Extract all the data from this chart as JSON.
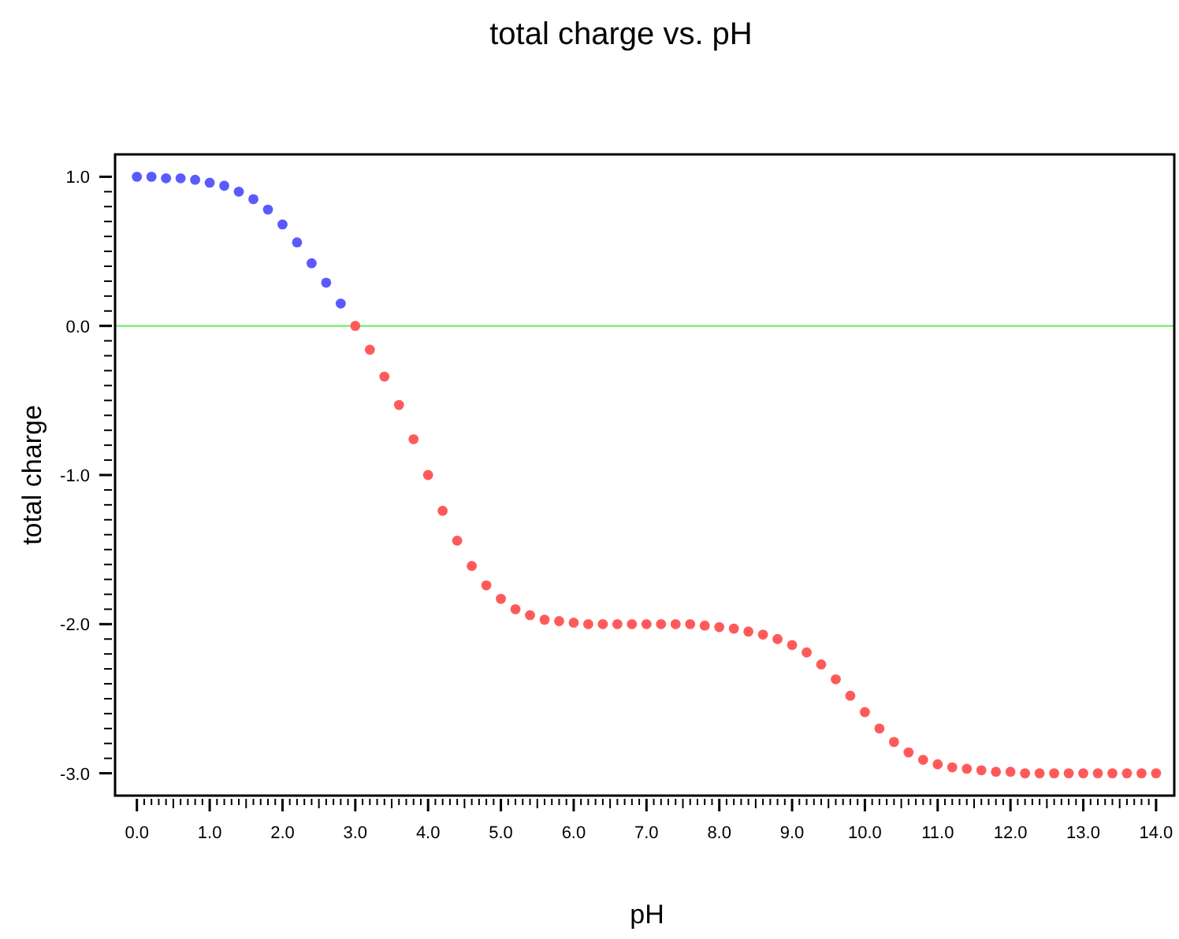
{
  "chart_data": {
    "type": "scatter",
    "title": "total charge vs. pH",
    "xlabel": "pH",
    "ylabel": "total charge",
    "marker": "circle",
    "grid": false,
    "xlim": [
      -0.3,
      14.25
    ],
    "ylim": [
      -3.15,
      1.15
    ],
    "xticks": [
      {
        "value": 0,
        "label": "0.0"
      },
      {
        "value": 1,
        "label": "1.0"
      },
      {
        "value": 2,
        "label": "2.0"
      },
      {
        "value": 3,
        "label": "3.0"
      },
      {
        "value": 4,
        "label": "4.0"
      },
      {
        "value": 5,
        "label": "5.0"
      },
      {
        "value": 6,
        "label": "6.0"
      },
      {
        "value": 7,
        "label": "7.0"
      },
      {
        "value": 8,
        "label": "8.0"
      },
      {
        "value": 9,
        "label": "9.0"
      },
      {
        "value": 10,
        "label": "10.0"
      },
      {
        "value": 11,
        "label": "11.0"
      },
      {
        "value": 12,
        "label": "12.0"
      },
      {
        "value": 13,
        "label": "13.0"
      },
      {
        "value": 14,
        "label": "14.0"
      },
      {
        "value": 0.1,
        "label": null
      },
      {
        "value": 0.2,
        "label": null
      },
      {
        "value": 0.3,
        "label": null
      },
      {
        "value": 0.4,
        "label": null
      },
      {
        "value": 0.5,
        "label": null
      },
      {
        "value": 0.6,
        "label": null
      },
      {
        "value": 0.7,
        "label": null
      },
      {
        "value": 0.8,
        "label": null
      },
      {
        "value": 0.9,
        "label": null
      },
      {
        "value": 1.1,
        "label": null
      },
      {
        "value": 1.2,
        "label": null
      },
      {
        "value": 1.3,
        "label": null
      },
      {
        "value": 1.4,
        "label": null
      },
      {
        "value": 1.5,
        "label": null
      },
      {
        "value": 1.6,
        "label": null
      },
      {
        "value": 1.7,
        "label": null
      },
      {
        "value": 1.8,
        "label": null
      },
      {
        "value": 1.9,
        "label": null
      },
      {
        "value": 2.1,
        "label": null
      },
      {
        "value": 2.2,
        "label": null
      },
      {
        "value": 2.3,
        "label": null
      },
      {
        "value": 2.4,
        "label": null
      },
      {
        "value": 2.5,
        "label": null
      },
      {
        "value": 2.6,
        "label": null
      },
      {
        "value": 2.7,
        "label": null
      },
      {
        "value": 2.8,
        "label": null
      },
      {
        "value": 2.9,
        "label": null
      },
      {
        "value": 3.1,
        "label": null
      },
      {
        "value": 3.2,
        "label": null
      },
      {
        "value": 3.3,
        "label": null
      },
      {
        "value": 3.4,
        "label": null
      },
      {
        "value": 3.5,
        "label": null
      },
      {
        "value": 3.6,
        "label": null
      },
      {
        "value": 3.7,
        "label": null
      },
      {
        "value": 3.8,
        "label": null
      },
      {
        "value": 3.9,
        "label": null
      },
      {
        "value": 4.1,
        "label": null
      },
      {
        "value": 4.2,
        "label": null
      },
      {
        "value": 4.3,
        "label": null
      },
      {
        "value": 4.4,
        "label": null
      },
      {
        "value": 4.5,
        "label": null
      },
      {
        "value": 4.6,
        "label": null
      },
      {
        "value": 4.7,
        "label": null
      },
      {
        "value": 4.8,
        "label": null
      },
      {
        "value": 4.9,
        "label": null
      },
      {
        "value": 5.1,
        "label": null
      },
      {
        "value": 5.2,
        "label": null
      },
      {
        "value": 5.3,
        "label": null
      },
      {
        "value": 5.4,
        "label": null
      },
      {
        "value": 5.5,
        "label": null
      },
      {
        "value": 5.6,
        "label": null
      },
      {
        "value": 5.7,
        "label": null
      },
      {
        "value": 5.8,
        "label": null
      },
      {
        "value": 5.9,
        "label": null
      },
      {
        "value": 6.1,
        "label": null
      },
      {
        "value": 6.2,
        "label": null
      },
      {
        "value": 6.3,
        "label": null
      },
      {
        "value": 6.4,
        "label": null
      },
      {
        "value": 6.5,
        "label": null
      },
      {
        "value": 6.6,
        "label": null
      },
      {
        "value": 6.7,
        "label": null
      },
      {
        "value": 6.8,
        "label": null
      },
      {
        "value": 6.9,
        "label": null
      },
      {
        "value": 7.1,
        "label": null
      },
      {
        "value": 7.2,
        "label": null
      },
      {
        "value": 7.3,
        "label": null
      },
      {
        "value": 7.4,
        "label": null
      },
      {
        "value": 7.5,
        "label": null
      },
      {
        "value": 7.6,
        "label": null
      },
      {
        "value": 7.7,
        "label": null
      },
      {
        "value": 7.8,
        "label": null
      },
      {
        "value": 7.9,
        "label": null
      },
      {
        "value": 8.1,
        "label": null
      },
      {
        "value": 8.2,
        "label": null
      },
      {
        "value": 8.3,
        "label": null
      },
      {
        "value": 8.4,
        "label": null
      },
      {
        "value": 8.5,
        "label": null
      },
      {
        "value": 8.6,
        "label": null
      },
      {
        "value": 8.7,
        "label": null
      },
      {
        "value": 8.8,
        "label": null
      },
      {
        "value": 8.9,
        "label": null
      },
      {
        "value": 9.1,
        "label": null
      },
      {
        "value": 9.2,
        "label": null
      },
      {
        "value": 9.3,
        "label": null
      },
      {
        "value": 9.4,
        "label": null
      },
      {
        "value": 9.5,
        "label": null
      },
      {
        "value": 9.6,
        "label": null
      },
      {
        "value": 9.7,
        "label": null
      },
      {
        "value": 9.8,
        "label": null
      },
      {
        "value": 9.9,
        "label": null
      },
      {
        "value": 10.1,
        "label": null
      },
      {
        "value": 10.2,
        "label": null
      },
      {
        "value": 10.3,
        "label": null
      },
      {
        "value": 10.4,
        "label": null
      },
      {
        "value": 10.5,
        "label": null
      },
      {
        "value": 10.6,
        "label": null
      },
      {
        "value": 10.7,
        "label": null
      },
      {
        "value": 10.8,
        "label": null
      },
      {
        "value": 10.9,
        "label": null
      },
      {
        "value": 11.1,
        "label": null
      },
      {
        "value": 11.2,
        "label": null
      },
      {
        "value": 11.3,
        "label": null
      },
      {
        "value": 11.4,
        "label": null
      },
      {
        "value": 11.5,
        "label": null
      },
      {
        "value": 11.6,
        "label": null
      },
      {
        "value": 11.7,
        "label": null
      },
      {
        "value": 11.8,
        "label": null
      },
      {
        "value": 11.9,
        "label": null
      },
      {
        "value": 12.1,
        "label": null
      },
      {
        "value": 12.2,
        "label": null
      },
      {
        "value": 12.3,
        "label": null
      },
      {
        "value": 12.4,
        "label": null
      },
      {
        "value": 12.5,
        "label": null
      },
      {
        "value": 12.6,
        "label": null
      },
      {
        "value": 12.7,
        "label": null
      },
      {
        "value": 12.8,
        "label": null
      },
      {
        "value": 12.9,
        "label": null
      },
      {
        "value": 13.1,
        "label": null
      },
      {
        "value": 13.2,
        "label": null
      },
      {
        "value": 13.3,
        "label": null
      },
      {
        "value": 13.4,
        "label": null
      },
      {
        "value": 13.5,
        "label": null
      },
      {
        "value": 13.6,
        "label": null
      },
      {
        "value": 13.7,
        "label": null
      },
      {
        "value": 13.8,
        "label": null
      },
      {
        "value": 13.9,
        "label": null
      }
    ],
    "yticks": [
      {
        "value": -3,
        "label": "-3.0"
      },
      {
        "value": -2,
        "label": "-2.0"
      },
      {
        "value": -1,
        "label": "-1.0"
      },
      {
        "value": 0,
        "label": "0.0"
      },
      {
        "value": 1,
        "label": "1.0"
      },
      {
        "value": -2.9,
        "label": null
      },
      {
        "value": -2.8,
        "label": null
      },
      {
        "value": -2.7,
        "label": null
      },
      {
        "value": -2.6,
        "label": null
      },
      {
        "value": -2.5,
        "label": null
      },
      {
        "value": -2.4,
        "label": null
      },
      {
        "value": -2.3,
        "label": null
      },
      {
        "value": -2.2,
        "label": null
      },
      {
        "value": -2.1,
        "label": null
      },
      {
        "value": -1.9,
        "label": null
      },
      {
        "value": -1.8,
        "label": null
      },
      {
        "value": -1.7,
        "label": null
      },
      {
        "value": -1.6,
        "label": null
      },
      {
        "value": -1.5,
        "label": null
      },
      {
        "value": -1.4,
        "label": null
      },
      {
        "value": -1.3,
        "label": null
      },
      {
        "value": -1.2,
        "label": null
      },
      {
        "value": -1.1,
        "label": null
      },
      {
        "value": -0.9,
        "label": null
      },
      {
        "value": -0.8,
        "label": null
      },
      {
        "value": -0.7,
        "label": null
      },
      {
        "value": -0.6,
        "label": null
      },
      {
        "value": -0.5,
        "label": null
      },
      {
        "value": -0.4,
        "label": null
      },
      {
        "value": -0.3,
        "label": null
      },
      {
        "value": -0.2,
        "label": null
      },
      {
        "value": -0.1,
        "label": null
      },
      {
        "value": 0.1,
        "label": null
      },
      {
        "value": 0.2,
        "label": null
      },
      {
        "value": 0.3,
        "label": null
      },
      {
        "value": 0.4,
        "label": null
      },
      {
        "value": 0.5,
        "label": null
      },
      {
        "value": 0.6,
        "label": null
      },
      {
        "value": 0.7,
        "label": null
      },
      {
        "value": 0.8,
        "label": null
      },
      {
        "value": 0.9,
        "label": null
      }
    ],
    "ref_lines": [
      {
        "axis": "y",
        "value": 0,
        "color": "#80ee80"
      }
    ],
    "series": [
      {
        "color": "#5a5aff",
        "x": [
          0,
          0.2,
          0.4,
          0.6,
          0.8,
          1.0,
          1.2,
          1.4,
          1.6,
          1.8,
          2.0,
          2.2,
          2.4,
          2.6,
          2.8
        ],
        "values": [
          1.0,
          1.0,
          0.99,
          0.99,
          0.98,
          0.96,
          0.94,
          0.9,
          0.85,
          0.78,
          0.68,
          0.56,
          0.42,
          0.29,
          0.15
        ]
      },
      {
        "color": "#ff5a5a",
        "x": [
          3.0,
          3.2,
          3.4,
          3.6,
          3.8,
          4.0,
          4.2,
          4.4,
          4.6,
          4.8,
          5.0,
          5.2,
          5.4,
          5.6,
          5.8,
          6.0,
          6.2,
          6.4,
          6.6,
          6.8,
          7.0,
          7.2,
          7.4,
          7.6,
          7.8,
          8.0,
          8.2,
          8.4,
          8.6,
          8.8,
          9.0,
          9.2,
          9.4,
          9.6,
          9.8,
          10.0,
          10.2,
          10.4,
          10.6,
          10.8,
          11.0,
          11.2,
          11.4,
          11.6,
          11.8,
          12.0,
          12.2,
          12.4,
          12.6,
          12.8,
          13.0,
          13.2,
          13.4,
          13.6,
          13.8,
          14.0
        ],
        "values": [
          0.0,
          -0.16,
          -0.34,
          -0.53,
          -0.76,
          -1.0,
          -1.24,
          -1.44,
          -1.61,
          -1.74,
          -1.83,
          -1.9,
          -1.94,
          -1.97,
          -1.98,
          -1.99,
          -2.0,
          -2.0,
          -2.0,
          -2.0,
          -2.0,
          -2.0,
          -2.0,
          -2.0,
          -2.01,
          -2.02,
          -2.03,
          -2.05,
          -2.07,
          -2.1,
          -2.14,
          -2.19,
          -2.27,
          -2.37,
          -2.48,
          -2.59,
          -2.7,
          -2.79,
          -2.86,
          -2.91,
          -2.94,
          -2.96,
          -2.97,
          -2.98,
          -2.99,
          -2.99,
          -3.0,
          -3.0,
          -3.0,
          -3.0,
          -3.0,
          -3.0,
          -3.0,
          -3.0,
          -3.0,
          -3.0
        ]
      }
    ]
  }
}
